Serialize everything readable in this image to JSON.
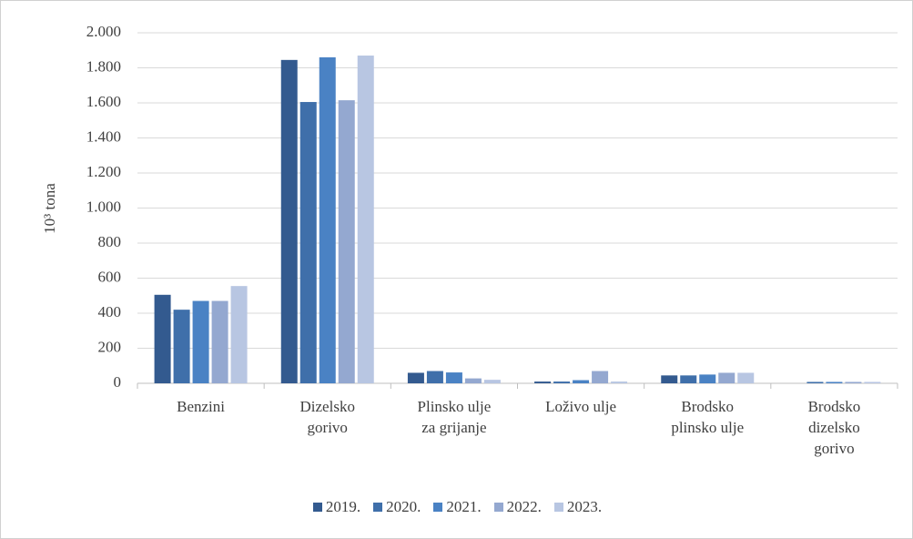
{
  "chart_data": {
    "type": "bar",
    "y_label": "10³ tona",
    "categories": [
      "Benzini",
      "Dizelsko\ngorivo",
      "Plinsko ulje\nza grijanje",
      "Loživo ulje",
      "Brodsko\nplinsko ulje",
      "Brodsko\ndizelsko\ngorivo"
    ],
    "series": [
      {
        "name": "2019.",
        "color": "#335a8f",
        "values": [
          505,
          1845,
          60,
          10,
          45,
          0
        ]
      },
      {
        "name": "2020.",
        "color": "#3f6faa",
        "values": [
          420,
          1605,
          70,
          10,
          45,
          8
        ]
      },
      {
        "name": "2021.",
        "color": "#4a82c4",
        "values": [
          470,
          1860,
          62,
          18,
          50,
          8
        ]
      },
      {
        "name": "2022.",
        "color": "#94a8d0",
        "values": [
          470,
          1615,
          28,
          70,
          60,
          8
        ]
      },
      {
        "name": "2023.",
        "color": "#b8c6e2",
        "values": [
          555,
          1870,
          20,
          10,
          60,
          8
        ]
      }
    ],
    "ylim": [
      0,
      2000
    ],
    "yticks": [
      0,
      200,
      400,
      600,
      800,
      {
        "value": 1000,
        "label": "1.000"
      },
      {
        "value": 1200,
        "label": "1.200"
      },
      {
        "value": 1400,
        "label": "1.400"
      },
      {
        "value": 1600,
        "label": "1.600"
      },
      {
        "value": 1800,
        "label": "1.800"
      },
      {
        "value": 2000,
        "label": "2.000"
      }
    ],
    "grid": true,
    "legend": "bottom"
  }
}
